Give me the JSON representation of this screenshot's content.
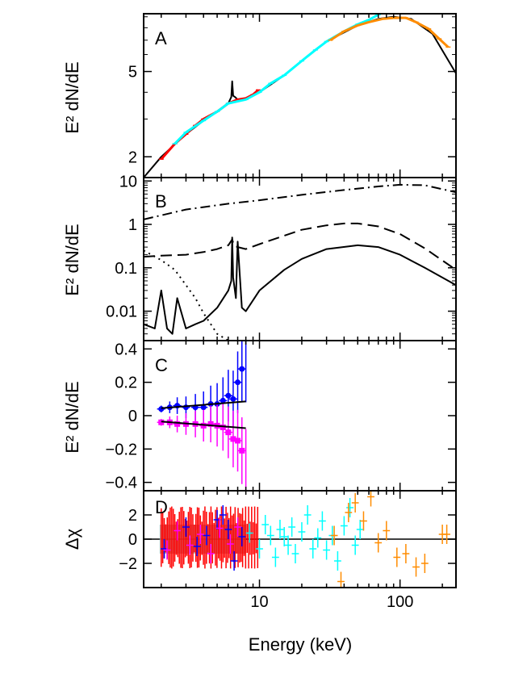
{
  "xlabel": "Energy (keV)",
  "x_ticks": [
    10,
    100
  ],
  "panels_text": {
    "A": "A",
    "B": "B",
    "C": "C",
    "D": "D"
  },
  "colors": {
    "red": "#ff0000",
    "cyan": "#00ffff",
    "orange": "#ff8c00",
    "blue": "#0000ff",
    "magenta": "#ff00ff",
    "grey": "#a0a0a0",
    "black": "#000000"
  },
  "chart_data": [
    {
      "type": "line",
      "panel": "A",
      "ylabel": "E² dN/dE",
      "yscale": "log",
      "xlim": [
        1.5,
        250
      ],
      "ylim": [
        1.6,
        9.3
      ],
      "y_ticks": [
        2,
        5
      ],
      "series": [
        {
          "role": "model",
          "color": "#000000",
          "x": [
            1.5,
            2,
            3,
            4,
            5,
            6,
            6.3,
            6.4,
            6.5,
            6.7,
            7,
            8,
            10,
            15,
            20,
            30,
            50,
            70,
            90,
            120,
            170,
            250
          ],
          "y": [
            1.6,
            2.0,
            2.55,
            2.95,
            3.25,
            3.55,
            3.8,
            4.5,
            3.85,
            3.8,
            3.7,
            3.7,
            4.0,
            4.8,
            5.6,
            6.9,
            8.2,
            8.8,
            9.0,
            8.8,
            7.5,
            4.9
          ]
        },
        {
          "role": "data",
          "color": "#ff0000",
          "x": [
            2,
            2.5,
            3,
            3.5,
            4,
            5,
            6,
            7,
            8,
            9,
            9.8
          ],
          "y": [
            1.95,
            2.3,
            2.55,
            2.8,
            3.0,
            3.25,
            3.55,
            3.7,
            3.75,
            3.9,
            4.1
          ]
        },
        {
          "role": "data",
          "color": "#00ffff",
          "x": [
            2.5,
            3,
            4,
            5,
            6,
            8,
            10,
            12,
            15,
            20,
            25,
            30,
            40,
            50,
            60,
            70
          ],
          "y": [
            2.3,
            2.6,
            2.95,
            3.25,
            3.55,
            3.7,
            4.0,
            4.4,
            4.8,
            5.6,
            6.3,
            6.9,
            7.7,
            8.3,
            8.7,
            9.2
          ]
        },
        {
          "role": "data",
          "color": "#ff8c00",
          "x": [
            32,
            40,
            50,
            60,
            75,
            90,
            110,
            130,
            160,
            190,
            220
          ],
          "y": [
            7.0,
            7.7,
            8.2,
            8.5,
            8.8,
            8.9,
            8.9,
            8.5,
            7.9,
            7.1,
            6.5
          ]
        }
      ]
    },
    {
      "type": "line",
      "panel": "B",
      "ylabel": "E² dN/dE",
      "yscale": "log",
      "xlim": [
        1.5,
        250
      ],
      "ylim": [
        0.0021,
        12
      ],
      "y_ticks": [
        0.01,
        0.1,
        1,
        10
      ],
      "y_tick_labels": [
        "0.01",
        "0.1",
        "1",
        "10"
      ],
      "series": [
        {
          "style": "dash-dot",
          "color": "#000000",
          "x": [
            1.5,
            3,
            6,
            10,
            20,
            40,
            70,
            100,
            150,
            250
          ],
          "y": [
            1.3,
            2.2,
            3.0,
            3.6,
            4.8,
            6.2,
            7.5,
            8.2,
            8.0,
            5.5
          ]
        },
        {
          "style": "dashed",
          "color": "#000000",
          "x": [
            1.5,
            2,
            3,
            4,
            5,
            6,
            6.4,
            6.6,
            7,
            8,
            10,
            15,
            20,
            30,
            40,
            50,
            70,
            100,
            150,
            250
          ],
          "y": [
            0.18,
            0.19,
            0.2,
            0.23,
            0.27,
            0.33,
            0.45,
            0.32,
            0.3,
            0.27,
            0.35,
            0.55,
            0.75,
            0.95,
            1.05,
            1.05,
            0.9,
            0.6,
            0.28,
            0.09
          ]
        },
        {
          "style": "solid",
          "color": "#000000",
          "x": [
            1.5,
            1.8,
            2,
            2.2,
            2.4,
            2.6,
            3,
            3.5,
            4,
            5,
            6,
            6.3,
            6.4,
            6.5,
            6.8,
            7,
            7.5,
            8,
            10,
            15,
            20,
            30,
            50,
            70,
            100,
            150,
            250
          ],
          "y": [
            0.005,
            0.004,
            0.03,
            0.004,
            0.003,
            0.02,
            0.004,
            0.005,
            0.006,
            0.012,
            0.03,
            0.05,
            0.5,
            0.06,
            0.02,
            0.4,
            0.012,
            0.01,
            0.03,
            0.09,
            0.16,
            0.27,
            0.33,
            0.3,
            0.2,
            0.1,
            0.04
          ]
        },
        {
          "style": "dotted",
          "color": "#000000",
          "x": [
            1.5,
            2,
            2.5,
            3,
            3.5,
            4,
            5,
            6
          ],
          "y": [
            0.25,
            0.15,
            0.09,
            0.04,
            0.02,
            0.009,
            0.003,
            0.0015
          ]
        }
      ]
    },
    {
      "type": "scatter",
      "panel": "C",
      "ylabel": "E² dN/dE",
      "yscale": "linear",
      "xlim": [
        1.5,
        250
      ],
      "ylim": [
        -0.45,
        0.45
      ],
      "y_ticks": [
        -0.4,
        -0.2,
        0,
        0.2,
        0.4
      ],
      "y_tick_labels": [
        "−0.4",
        "−0.2",
        "0",
        "0.2",
        "0.4"
      ],
      "series": [
        {
          "color": "#0000ff",
          "x": [
            2.0,
            2.3,
            2.6,
            3.0,
            3.5,
            4.0,
            4.5,
            5.0,
            5.5,
            6.0,
            6.5,
            7.0,
            7.5
          ],
          "y": [
            0.04,
            0.05,
            0.06,
            0.05,
            0.05,
            0.05,
            0.07,
            0.07,
            0.09,
            0.12,
            0.1,
            0.2,
            0.28
          ]
        },
        {
          "color": "#ff00ff",
          "x": [
            2.0,
            2.3,
            2.6,
            3.0,
            3.5,
            4.0,
            4.5,
            5.0,
            5.5,
            6.0,
            6.5,
            7.0,
            7.5
          ],
          "y": [
            -0.04,
            -0.04,
            -0.05,
            -0.05,
            -0.05,
            -0.06,
            -0.05,
            -0.06,
            -0.07,
            -0.1,
            -0.14,
            -0.15,
            -0.21
          ]
        },
        {
          "role": "model-upper",
          "color": "#000000",
          "x": [
            2,
            8
          ],
          "y": [
            0.045,
            0.085
          ]
        },
        {
          "role": "model-lower",
          "color": "#000000",
          "x": [
            2,
            8
          ],
          "y": [
            -0.035,
            -0.075
          ]
        }
      ]
    },
    {
      "type": "scatter",
      "panel": "D",
      "ylabel": "Δχ",
      "yscale": "linear",
      "xlim": [
        1.5,
        250
      ],
      "ylim": [
        -4,
        4
      ],
      "y_ticks": [
        -2,
        0,
        2
      ],
      "y_tick_labels": [
        "−2",
        "0",
        "2"
      ],
      "series": [
        {
          "color": "#00ffff",
          "x": [
            8.5,
            10,
            11,
            12,
            13,
            14,
            15,
            16,
            17,
            18,
            20,
            22,
            24,
            26,
            28,
            30,
            33,
            36,
            40,
            44,
            48,
            52
          ],
          "y": [
            0.5,
            -0.8,
            1.2,
            0.3,
            -1.5,
            0.8,
            0.2,
            -0.5,
            1.0,
            -1.2,
            0.6,
            2.0,
            -0.8,
            0.1,
            1.5,
            -0.9,
            0.3,
            -1.8,
            1.1,
            2.6,
            -0.5,
            0.8
          ]
        },
        {
          "color": "#ff8c00",
          "x": [
            34,
            38,
            43,
            48,
            55,
            62,
            70,
            80,
            95,
            110,
            130,
            150,
            200,
            215
          ],
          "y": [
            0.3,
            -3.5,
            2.2,
            3.0,
            1.5,
            3.5,
            -0.3,
            0.7,
            -1.5,
            -1.2,
            -2.3,
            -2.0,
            0.4,
            0.4
          ]
        },
        {
          "color": "#0000ff",
          "x": [
            2.1,
            3,
            3.6,
            4.2,
            5,
            5.5,
            6,
            6.6,
            7.5
          ],
          "y": [
            -0.8,
            1.0,
            -0.6,
            0.3,
            1.6,
            2.0,
            0.8,
            -1.8,
            0.2
          ]
        },
        {
          "color": "#ff00ff",
          "x": [
            2.2,
            2.6,
            3.2,
            3.8,
            4.5,
            5.2,
            6.2,
            7.0
          ],
          "y": [
            -0.9,
            0.7,
            -0.5,
            0.4,
            -1.2,
            0.9,
            -0.4,
            1.0
          ]
        }
      ]
    }
  ]
}
